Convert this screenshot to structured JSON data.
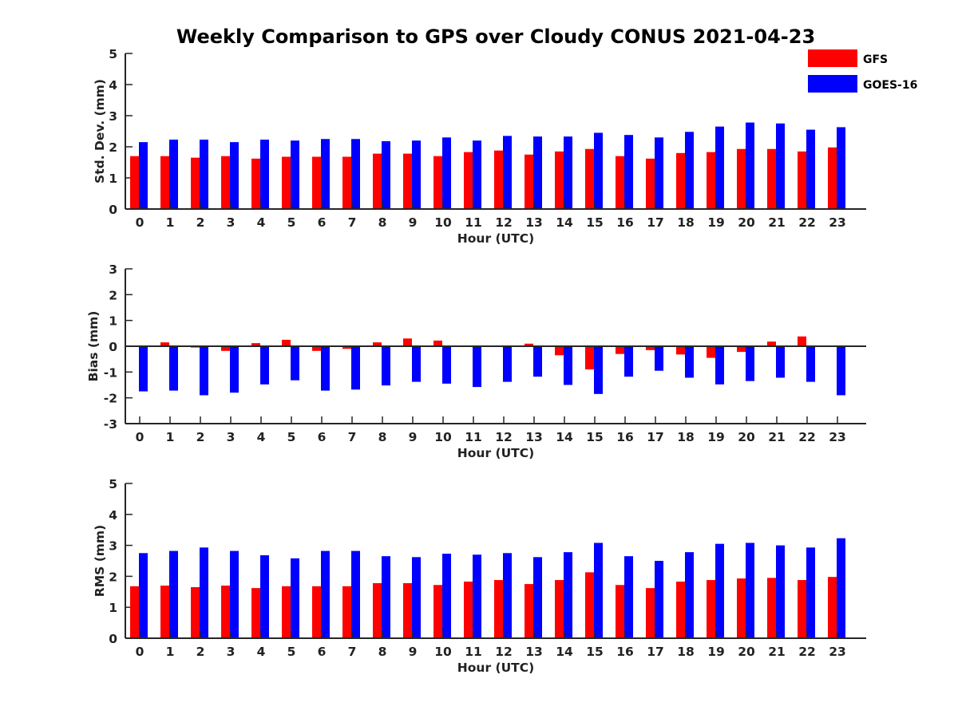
{
  "title": "Weekly Comparison to GPS over Cloudy CONUS 2021-04-23",
  "colors": {
    "GFS": "#ff0000",
    "GOES-16": "#0000ff"
  },
  "legend": {
    "placement": "top-right",
    "entries": [
      "GFS",
      "GOES-16"
    ]
  },
  "chart_data": [
    {
      "type": "bar",
      "xlabel": "Hour (UTC)",
      "ylabel": "Std. Dev. (mm)",
      "ylim": [
        0,
        5
      ],
      "yticks": [
        0,
        1,
        2,
        3,
        4,
        5
      ],
      "categories": [
        "0",
        "1",
        "2",
        "3",
        "4",
        "5",
        "6",
        "7",
        "8",
        "9",
        "10",
        "11",
        "12",
        "13",
        "14",
        "15",
        "16",
        "17",
        "18",
        "19",
        "20",
        "21",
        "22",
        "23"
      ],
      "series": [
        {
          "name": "GFS",
          "values": [
            1.7,
            1.7,
            1.65,
            1.7,
            1.62,
            1.68,
            1.68,
            1.68,
            1.78,
            1.78,
            1.7,
            1.83,
            1.88,
            1.75,
            1.85,
            1.93,
            1.7,
            1.62,
            1.8,
            1.83,
            1.93,
            1.93,
            1.85,
            1.98
          ]
        },
        {
          "name": "GOES-16",
          "values": [
            2.15,
            2.23,
            2.23,
            2.15,
            2.23,
            2.2,
            2.25,
            2.25,
            2.18,
            2.2,
            2.3,
            2.2,
            2.35,
            2.33,
            2.33,
            2.45,
            2.38,
            2.3,
            2.48,
            2.65,
            2.78,
            2.75,
            2.55,
            2.63
          ]
        }
      ]
    },
    {
      "type": "bar",
      "xlabel": "Hour (UTC)",
      "ylabel": "Bias (mm)",
      "ylim": [
        -3,
        3
      ],
      "yticks": [
        -3,
        -2,
        -1,
        0,
        1,
        2,
        3
      ],
      "categories": [
        "0",
        "1",
        "2",
        "3",
        "4",
        "5",
        "6",
        "7",
        "8",
        "9",
        "10",
        "11",
        "12",
        "13",
        "14",
        "15",
        "16",
        "17",
        "18",
        "19",
        "20",
        "21",
        "22",
        "23"
      ],
      "series": [
        {
          "name": "GFS",
          "values": [
            0.0,
            0.15,
            -0.05,
            -0.18,
            0.12,
            0.25,
            -0.18,
            -0.1,
            0.15,
            0.3,
            0.22,
            0.0,
            0.0,
            0.1,
            -0.35,
            -0.9,
            -0.3,
            -0.15,
            -0.32,
            -0.45,
            -0.22,
            0.18,
            0.38,
            0.02
          ]
        },
        {
          "name": "GOES-16",
          "values": [
            -1.75,
            -1.72,
            -1.9,
            -1.8,
            -1.48,
            -1.32,
            -1.72,
            -1.68,
            -1.52,
            -1.38,
            -1.45,
            -1.58,
            -1.38,
            -1.18,
            -1.5,
            -1.85,
            -1.18,
            -0.95,
            -1.22,
            -1.48,
            -1.35,
            -1.22,
            -1.38,
            -1.9
          ]
        }
      ]
    },
    {
      "type": "bar",
      "xlabel": "Hour (UTC)",
      "ylabel": "RMS (mm)",
      "ylim": [
        0,
        5
      ],
      "yticks": [
        0,
        1,
        2,
        3,
        4,
        5
      ],
      "categories": [
        "0",
        "1",
        "2",
        "3",
        "4",
        "5",
        "6",
        "7",
        "8",
        "9",
        "10",
        "11",
        "12",
        "13",
        "14",
        "15",
        "16",
        "17",
        "18",
        "19",
        "20",
        "21",
        "22",
        "23"
      ],
      "series": [
        {
          "name": "GFS",
          "values": [
            1.68,
            1.7,
            1.65,
            1.7,
            1.62,
            1.68,
            1.68,
            1.68,
            1.78,
            1.78,
            1.72,
            1.83,
            1.88,
            1.75,
            1.88,
            2.13,
            1.72,
            1.62,
            1.83,
            1.88,
            1.93,
            1.95,
            1.88,
            1.98
          ]
        },
        {
          "name": "GOES-16",
          "values": [
            2.75,
            2.82,
            2.93,
            2.82,
            2.68,
            2.58,
            2.82,
            2.82,
            2.65,
            2.62,
            2.73,
            2.7,
            2.75,
            2.62,
            2.78,
            3.08,
            2.65,
            2.5,
            2.78,
            3.05,
            3.08,
            3.0,
            2.93,
            3.23
          ]
        }
      ]
    }
  ]
}
